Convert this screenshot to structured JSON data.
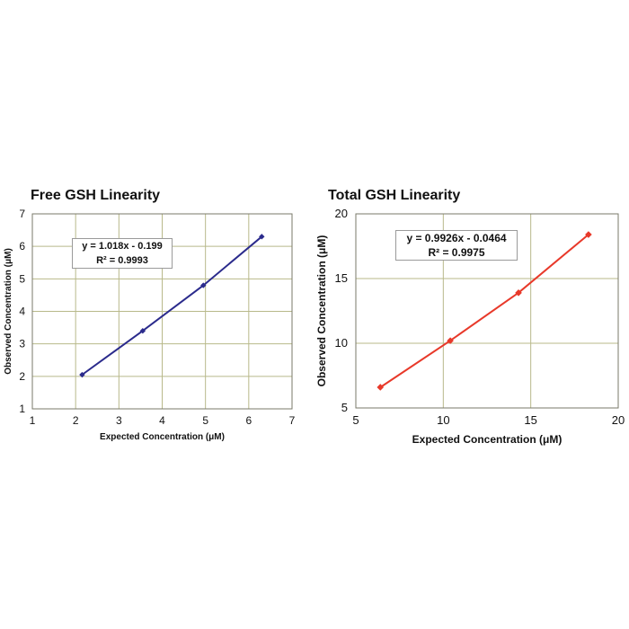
{
  "chart_data": [
    {
      "type": "scatter",
      "title": "Free GSH Linearity",
      "xlabel": "Expected Concentration (μM)",
      "ylabel": "Observed Concentration (μM)",
      "xlim": [
        1,
        7
      ],
      "ylim": [
        1,
        7
      ],
      "xticks": [
        "1",
        "2",
        "3",
        "4",
        "5",
        "6",
        "7"
      ],
      "yticks": [
        "1",
        "2",
        "3",
        "4",
        "5",
        "6",
        "7"
      ],
      "grid": true,
      "color": "#2b2b8c",
      "annotation": {
        "equation": "y = 1.018x - 0.199",
        "r2_label": "R² = 0.9993"
      },
      "series": [
        {
          "x": [
            2.15,
            3.55,
            4.95,
            6.3
          ],
          "y": [
            2.05,
            3.4,
            4.8,
            6.3
          ]
        }
      ]
    },
    {
      "type": "scatter",
      "title": "Total GSH Linearity",
      "xlabel": "Expected Concentration (μM)",
      "ylabel": "Observed Concentration (μM)",
      "xlim": [
        5,
        20
      ],
      "ylim": [
        5,
        20
      ],
      "xticks": [
        "5",
        "10",
        "15",
        "20"
      ],
      "yticks": [
        "5",
        "10",
        "15",
        "20"
      ],
      "grid": true,
      "color": "#e8392a",
      "annotation": {
        "equation": "y = 0.9926x - 0.0464",
        "r2_label": "R² = 0.9975"
      },
      "series": [
        {
          "x": [
            6.4,
            10.4,
            14.3,
            18.3
          ],
          "y": [
            6.6,
            10.2,
            13.9,
            18.4
          ]
        }
      ]
    }
  ]
}
